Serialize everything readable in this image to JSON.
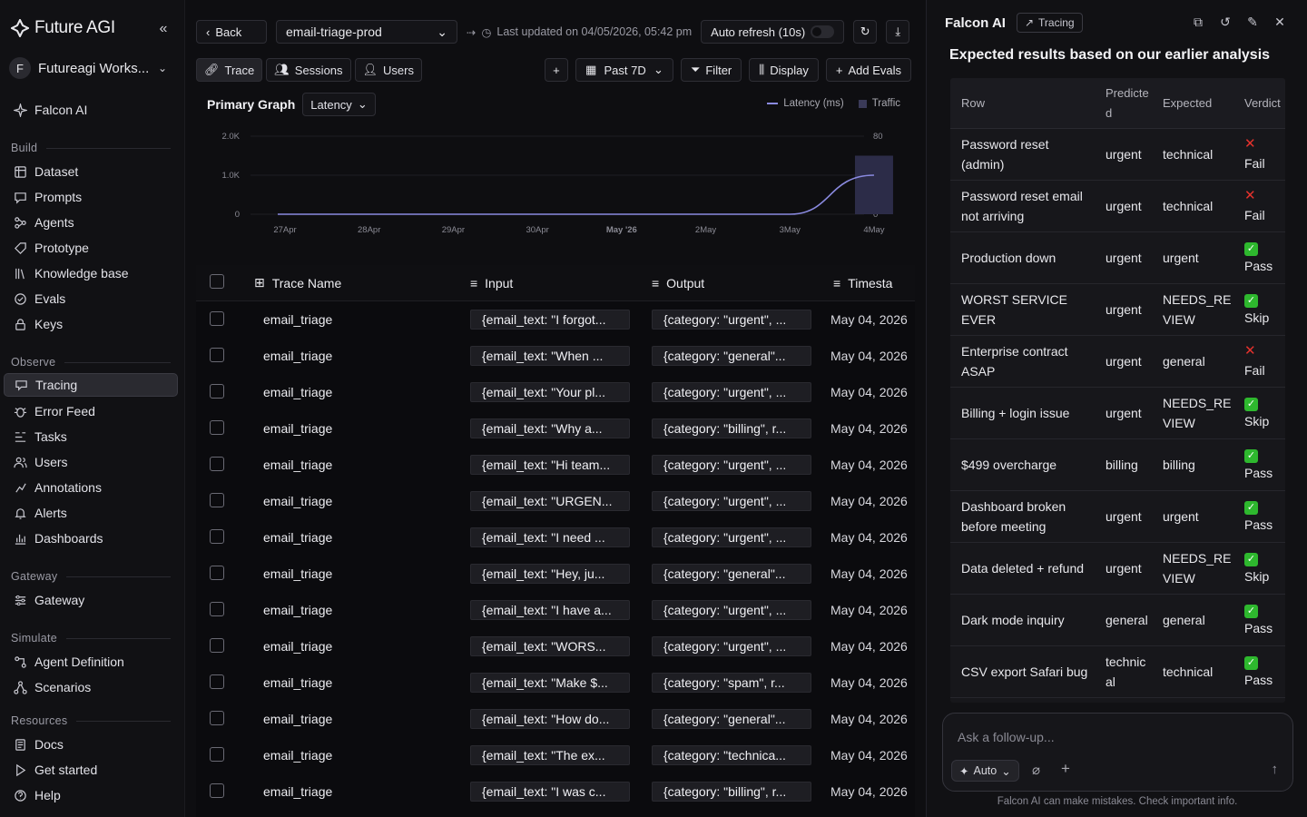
{
  "brand": {
    "name": "Future AGI"
  },
  "workspace": {
    "initial": "F",
    "name": "Futureagi Works..."
  },
  "nav": {
    "falcon": "Falcon AI",
    "sections": [
      {
        "label": "Build",
        "items": [
          "Dataset",
          "Prompts",
          "Agents",
          "Prototype",
          "Knowledge base",
          "Evals",
          "Keys"
        ]
      },
      {
        "label": "Observe",
        "items": [
          "Tracing",
          "Error Feed",
          "Tasks",
          "Users",
          "Annotations",
          "Alerts",
          "Dashboards"
        ]
      },
      {
        "label": "Gateway",
        "items": [
          "Gateway"
        ]
      },
      {
        "label": "Simulate",
        "items": [
          "Agent Definition",
          "Scenarios"
        ]
      },
      {
        "label": "Resources",
        "items": [
          "Docs",
          "Get started",
          "Help"
        ]
      }
    ],
    "active": "Tracing"
  },
  "topbar": {
    "back": "Back",
    "project": "email-triage-prod",
    "last_updated": "Last updated on 04/05/2026, 05:42 pm",
    "auto_refresh": "Auto refresh (10s)"
  },
  "tabs": [
    "Trace",
    "Sessions",
    "Users"
  ],
  "tools": {
    "range": "Past 7D",
    "filter": "Filter",
    "display": "Display",
    "add_evals": "Add Evals"
  },
  "graph": {
    "title": "Primary Graph",
    "metric": "Latency",
    "legend_latency": "Latency (ms)",
    "legend_traffic": "Traffic"
  },
  "chart_data": {
    "type": "line",
    "categories": [
      "27Apr",
      "28Apr",
      "29Apr",
      "30Apr",
      "May '26",
      "2May",
      "3May",
      "4May"
    ],
    "series": [
      {
        "name": "Latency (ms)",
        "type": "line",
        "values": [
          0,
          0,
          0,
          0,
          0,
          0,
          0,
          1000
        ]
      },
      {
        "name": "Traffic",
        "type": "bar",
        "values": [
          0,
          0,
          0,
          0,
          0,
          0,
          0,
          60
        ]
      }
    ],
    "y_left_ticks": [
      "0",
      "1.0K",
      "2.0K"
    ],
    "y_right_ticks": [
      "0",
      "40",
      "80"
    ],
    "ylim_left": [
      0,
      2000
    ],
    "ylim_right": [
      0,
      80
    ],
    "colors": {
      "line": "#8a8ae0",
      "bar": "#2c2c48"
    }
  },
  "table": {
    "columns": [
      "Trace Name",
      "Input",
      "Output",
      "Timesta"
    ],
    "rows": [
      {
        "name": "email_triage",
        "input": "{email_text: \"I forgot...",
        "output": "{category: \"urgent\", ...",
        "ts": "May 04, 2026"
      },
      {
        "name": "email_triage",
        "input": "{email_text: \"When ...",
        "output": "{category: \"general\"...",
        "ts": "May 04, 2026"
      },
      {
        "name": "email_triage",
        "input": "{email_text: \"Your pl...",
        "output": "{category: \"urgent\", ...",
        "ts": "May 04, 2026"
      },
      {
        "name": "email_triage",
        "input": "{email_text: \"Why a...",
        "output": "{category: \"billing\", r...",
        "ts": "May 04, 2026"
      },
      {
        "name": "email_triage",
        "input": "{email_text: \"Hi team...",
        "output": "{category: \"urgent\", ...",
        "ts": "May 04, 2026"
      },
      {
        "name": "email_triage",
        "input": "{email_text: \"URGEN...",
        "output": "{category: \"urgent\", ...",
        "ts": "May 04, 2026"
      },
      {
        "name": "email_triage",
        "input": "{email_text: \"I need ...",
        "output": "{category: \"urgent\", ...",
        "ts": "May 04, 2026"
      },
      {
        "name": "email_triage",
        "input": "{email_text: \"Hey, ju...",
        "output": "{category: \"general\"...",
        "ts": "May 04, 2026"
      },
      {
        "name": "email_triage",
        "input": "{email_text: \"I have a...",
        "output": "{category: \"urgent\", ...",
        "ts": "May 04, 2026"
      },
      {
        "name": "email_triage",
        "input": "{email_text: \"WORS...",
        "output": "{category: \"urgent\", ...",
        "ts": "May 04, 2026"
      },
      {
        "name": "email_triage",
        "input": "{email_text: \"Make $...",
        "output": "{category: \"spam\", r...",
        "ts": "May 04, 2026"
      },
      {
        "name": "email_triage",
        "input": "{email_text: \"How do...",
        "output": "{category: \"general\"...",
        "ts": "May 04, 2026"
      },
      {
        "name": "email_triage",
        "input": "{email_text: \"The ex...",
        "output": "{category: \"technica...",
        "ts": "May 04, 2026"
      },
      {
        "name": "email_triage",
        "input": "{email_text: \"I was c...",
        "output": "{category: \"billing\", r...",
        "ts": "May 04, 2026"
      }
    ]
  },
  "panel": {
    "title": "Falcon AI",
    "badge": "Tracing",
    "results_title": "Expected results based on our earlier analysis",
    "columns": [
      "Row",
      "Predicted",
      "Expected",
      "Verdict"
    ],
    "rows": [
      {
        "row": "Password reset (admin)",
        "predicted": "urgent",
        "expected": "technical",
        "verdict": "Fail"
      },
      {
        "row": "Password reset email not arriving",
        "predicted": "urgent",
        "expected": "technical",
        "verdict": "Fail"
      },
      {
        "row": "Production down",
        "predicted": "urgent",
        "expected": "urgent",
        "verdict": "Pass"
      },
      {
        "row": "WORST SERVICE EVER",
        "predicted": "urgent",
        "expected": "NEEDS_REVIEW",
        "verdict": "Skip"
      },
      {
        "row": "Enterprise contract ASAP",
        "predicted": "urgent",
        "expected": "general",
        "verdict": "Fail"
      },
      {
        "row": "Billing + login issue",
        "predicted": "urgent",
        "expected": "NEEDS_REVIEW",
        "verdict": "Skip"
      },
      {
        "row": "$499 overcharge",
        "predicted": "billing",
        "expected": "billing",
        "verdict": "Pass"
      },
      {
        "row": "Dashboard broken before meeting",
        "predicted": "urgent",
        "expected": "urgent",
        "verdict": "Pass"
      },
      {
        "row": "Data deleted + refund",
        "predicted": "urgent",
        "expected": "NEEDS_REVIEW",
        "verdict": "Skip"
      },
      {
        "row": "Dark mode inquiry",
        "predicted": "general",
        "expected": "general",
        "verdict": "Pass"
      },
      {
        "row": "CSV export Safari bug",
        "predicted": "technical",
        "expected": "technical",
        "verdict": "Pass"
      }
    ],
    "chat_placeholder": "Ask a follow-up...",
    "mode": "Auto",
    "disclaimer": "Falcon AI can make mistakes. Check important info."
  }
}
